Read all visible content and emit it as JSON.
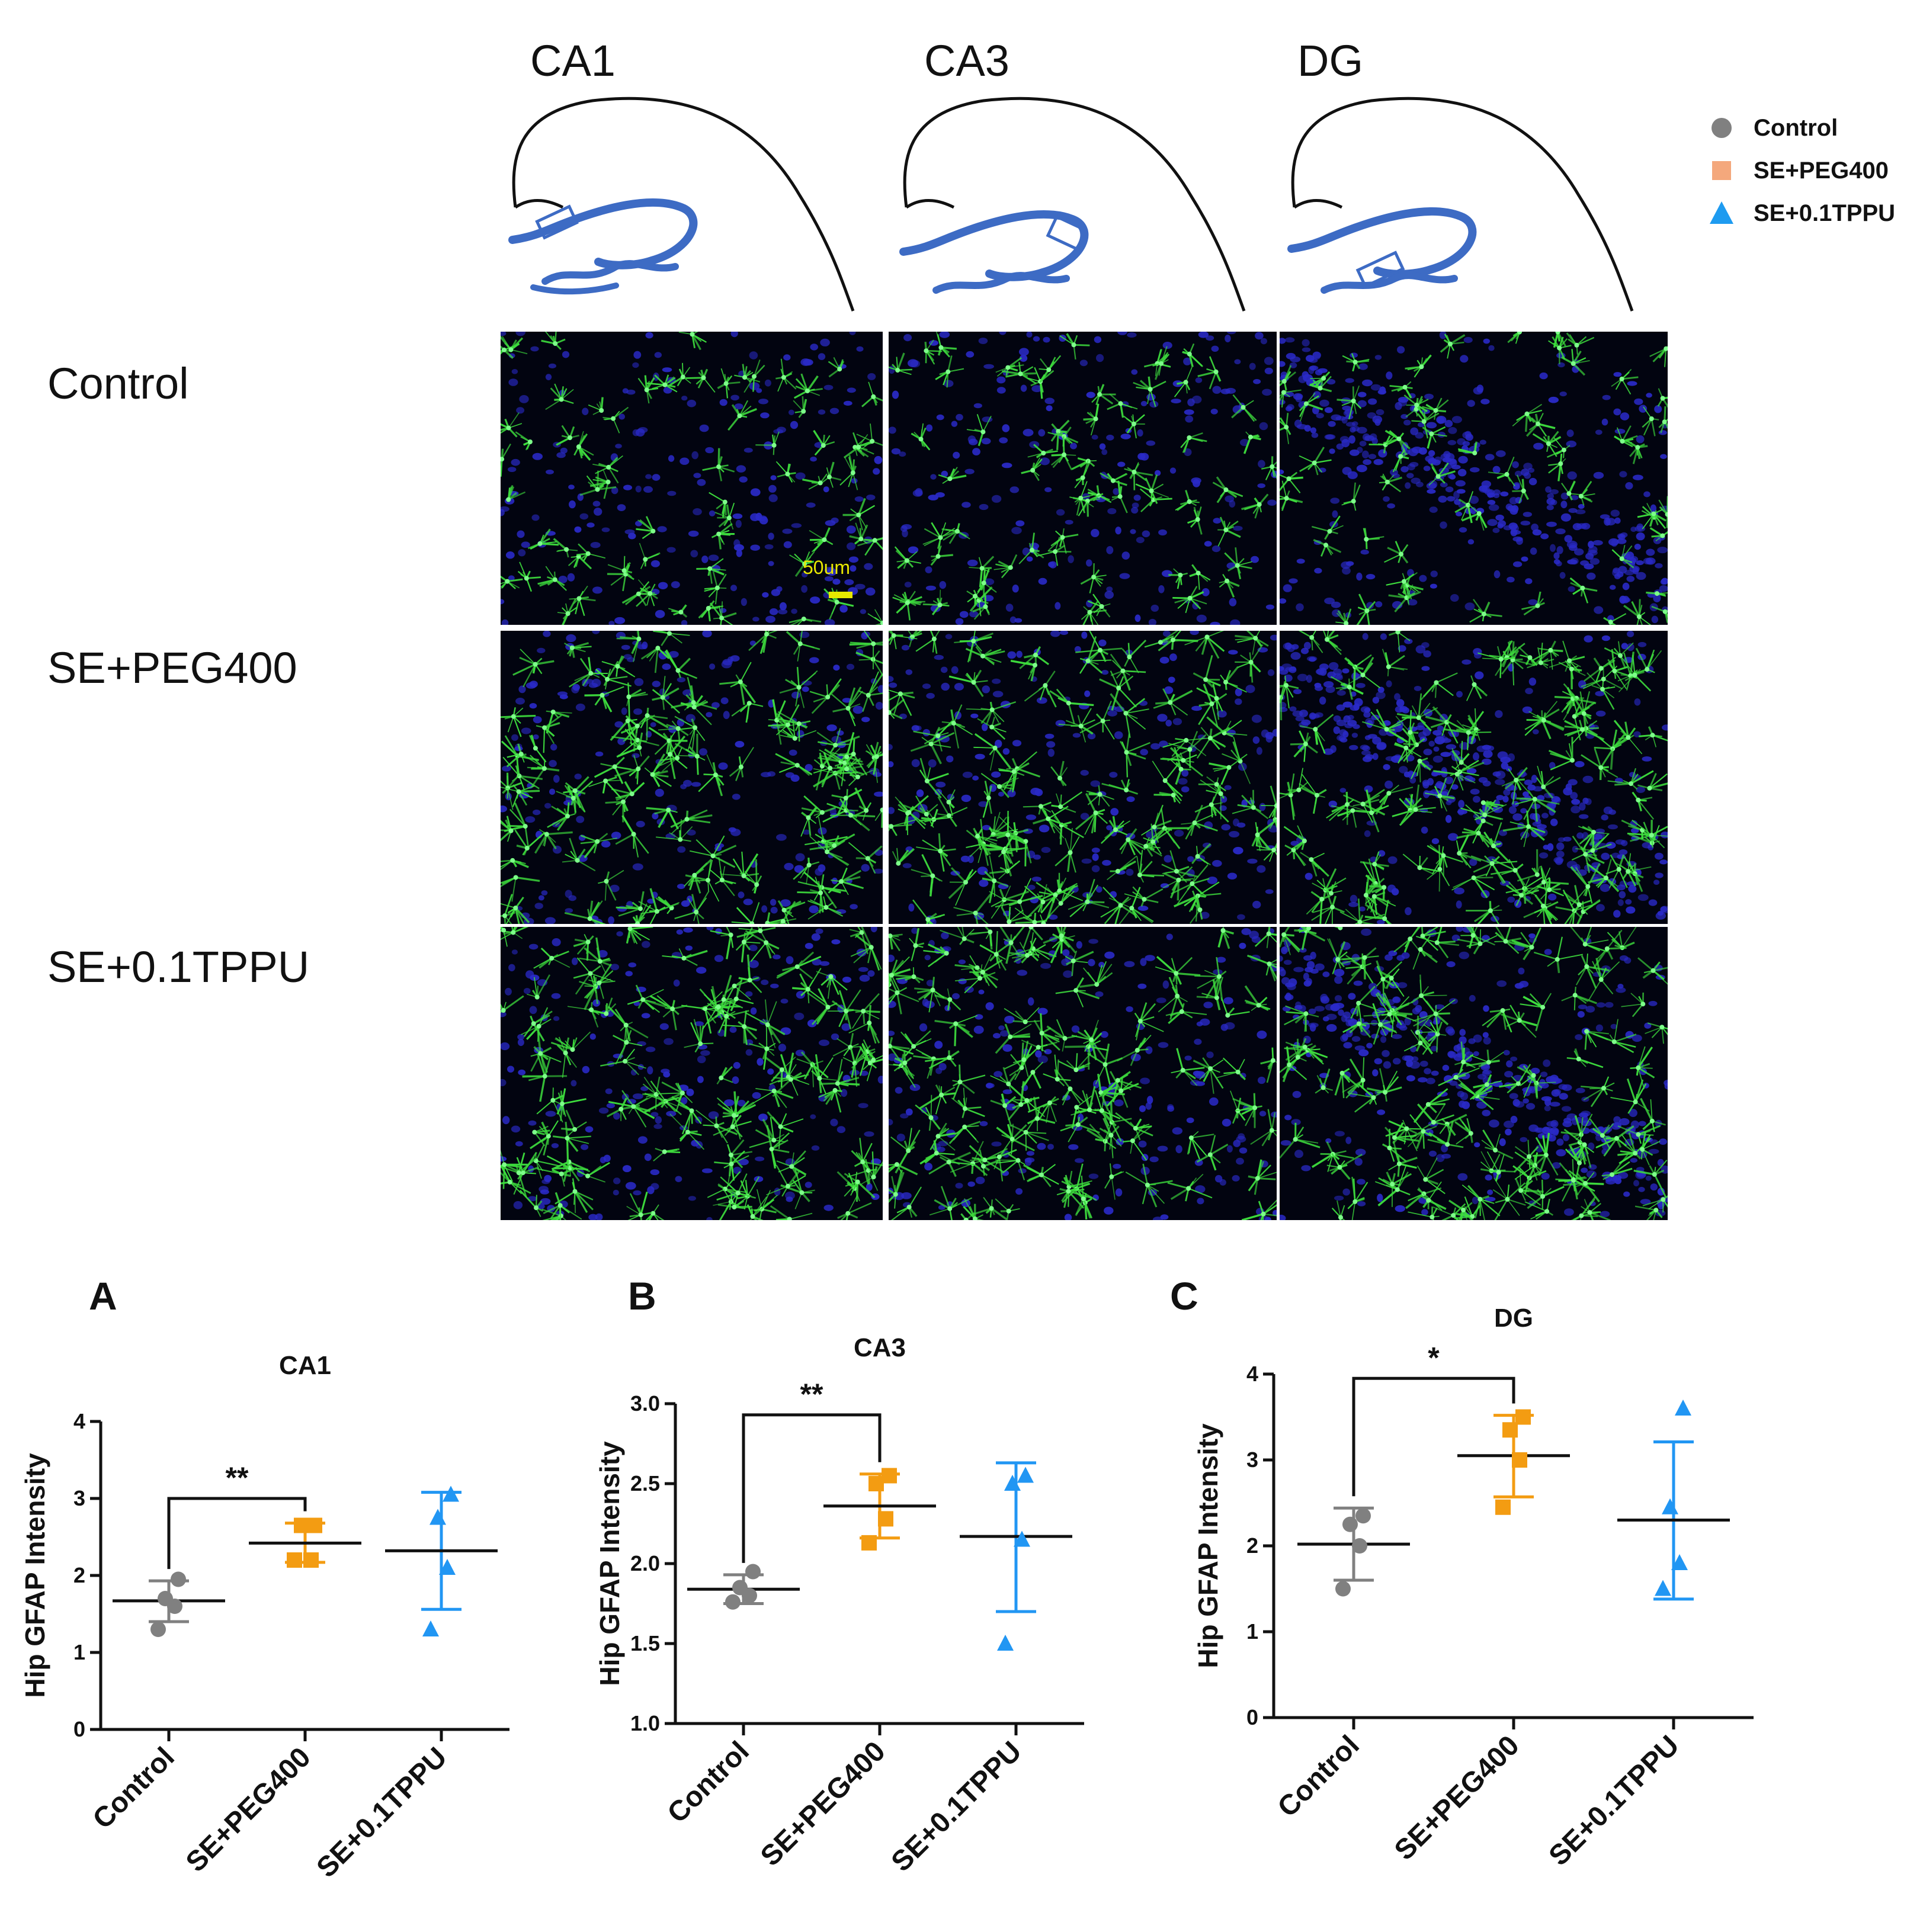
{
  "column_headers": [
    "CA1",
    "CA3",
    "DG"
  ],
  "row_headers": [
    "Control",
    "SE+PEG400",
    "SE+0.1TPPU"
  ],
  "scale_bar_label": "50um",
  "legend": {
    "items": [
      {
        "label": "Control",
        "marker": "circle",
        "color": "#808080"
      },
      {
        "label": "SE+PEG400",
        "marker": "square",
        "color": "#F4A87C"
      },
      {
        "label": "SE+0.1TPPU",
        "marker": "triangle",
        "color": "#1E9BF0"
      }
    ]
  },
  "colors": {
    "control": "#808080",
    "peg": "#F39C12",
    "tppu": "#2196F3",
    "diagram_blue": "#3D6BC4",
    "nuclei": "#2a2ac8",
    "gfap": "#3ddc3d"
  },
  "panel_letters": [
    "A",
    "B",
    "C"
  ],
  "chart_data": [
    {
      "type": "scatter",
      "title": "CA1",
      "ylabel": "Hip GFAP Intensity",
      "categories": [
        "Control",
        "SE+PEG400",
        "SE+0.1TPPU"
      ],
      "ylim": [
        0,
        4
      ],
      "yticks": [
        "0",
        "1",
        "2",
        "3",
        "4"
      ],
      "series": [
        {
          "name": "Control",
          "points": [
            1.3,
            1.6,
            1.7,
            1.95
          ],
          "mean": 1.67,
          "err_low": 1.4,
          "err_high": 1.93
        },
        {
          "name": "SE+PEG400",
          "points": [
            2.2,
            2.2,
            2.65,
            2.65
          ],
          "mean": 2.42,
          "err_low": 2.17,
          "err_high": 2.68
        },
        {
          "name": "SE+0.1TPPU",
          "points": [
            1.3,
            2.1,
            2.75,
            3.05
          ],
          "mean": 2.32,
          "err_low": 1.56,
          "err_high": 3.08
        }
      ],
      "significance": [
        {
          "from": 0,
          "to": 1,
          "label": "**",
          "y": 3.0
        }
      ]
    },
    {
      "type": "scatter",
      "title": "CA3",
      "ylabel": "Hip GFAP Intensity",
      "categories": [
        "Control",
        "SE+PEG400",
        "SE+0.1TPPU"
      ],
      "ylim": [
        1.0,
        3.0
      ],
      "yticks": [
        "1.0",
        "1.5",
        "2.0",
        "2.5",
        "3.0"
      ],
      "series": [
        {
          "name": "Control",
          "points": [
            1.76,
            1.8,
            1.85,
            1.95
          ],
          "mean": 1.84,
          "err_low": 1.75,
          "err_high": 1.93
        },
        {
          "name": "SE+PEG400",
          "points": [
            2.13,
            2.28,
            2.5,
            2.55
          ],
          "mean": 2.36,
          "err_low": 2.16,
          "err_high": 2.56
        },
        {
          "name": "SE+0.1TPPU",
          "points": [
            1.5,
            2.15,
            2.5,
            2.55
          ],
          "mean": 2.17,
          "err_low": 1.7,
          "err_high": 2.63
        }
      ],
      "significance": [
        {
          "from": 0,
          "to": 1,
          "label": "**",
          "y": 2.93
        }
      ]
    },
    {
      "type": "scatter",
      "title": "DG",
      "ylabel": "Hip GFAP Intensity",
      "categories": [
        "Control",
        "SE+PEG400",
        "SE+0.1TPPU"
      ],
      "ylim": [
        0,
        4
      ],
      "yticks": [
        "0",
        "1",
        "2",
        "3",
        "4"
      ],
      "series": [
        {
          "name": "Control",
          "points": [
            1.5,
            2.0,
            2.25,
            2.35
          ],
          "mean": 2.02,
          "err_low": 1.6,
          "err_high": 2.44
        },
        {
          "name": "SE+PEG400",
          "points": [
            2.45,
            3.0,
            3.35,
            3.5
          ],
          "mean": 3.05,
          "err_low": 2.57,
          "err_high": 3.52
        },
        {
          "name": "SE+0.1TPPU",
          "points": [
            1.5,
            1.8,
            2.45,
            3.6
          ],
          "mean": 2.3,
          "err_low": 1.38,
          "err_high": 3.21
        }
      ],
      "significance": [
        {
          "from": 0,
          "to": 1,
          "label": "*",
          "y": 3.95
        }
      ]
    }
  ]
}
